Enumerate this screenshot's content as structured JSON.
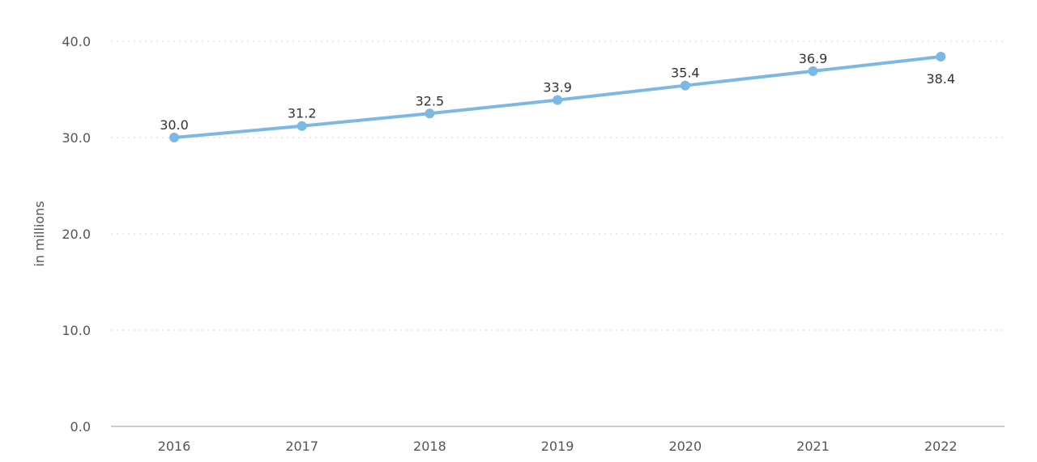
{
  "chart_data": {
    "type": "line",
    "title": "",
    "xlabel": "",
    "ylabel": "in millions",
    "categories": [
      "2016",
      "2017",
      "2018",
      "2019",
      "2020",
      "2021",
      "2022"
    ],
    "series": [
      {
        "values": [
          30.0,
          31.2,
          32.5,
          33.9,
          35.4,
          36.9,
          38.4
        ],
        "data_labels": [
          "30.0",
          "31.2",
          "32.5",
          "33.9",
          "35.4",
          "36.9",
          "38.4"
        ],
        "color": "#7cb8e4"
      }
    ],
    "ylim": [
      0,
      40
    ],
    "yticks": [
      0,
      10,
      20,
      30,
      40
    ],
    "ytick_labels": [
      "0.0",
      "10.0",
      "20.0",
      "30.0",
      "40.0"
    ],
    "grid": true,
    "legend": "none"
  }
}
